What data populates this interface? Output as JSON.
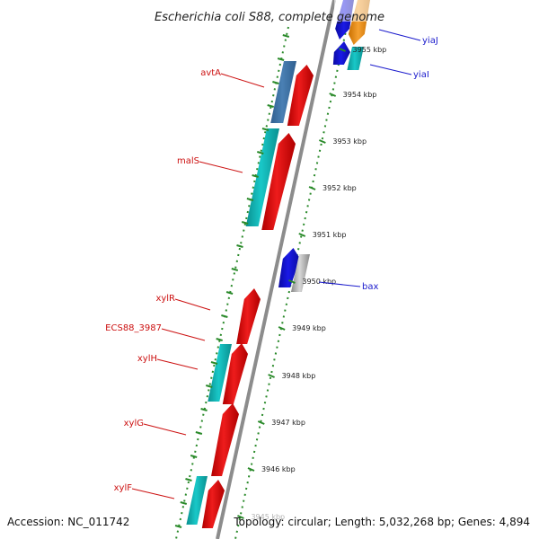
{
  "title": "Escherichia coli S88, complete genome",
  "footer": {
    "accession": "Accession: NC_011742",
    "summary": "Topology: circular; Length: 5,032,268 bp; Genes: 4,894"
  },
  "colors": {
    "backbone": "#8c8c8c",
    "tick": "#2a8a2a",
    "red": "#ee1c1c",
    "cyan": "#19c8c8",
    "steelblue": "#4a80b4",
    "blue": "#1a1ae6",
    "grey": "#b8b8b8",
    "orange": "#f5a030",
    "label_left": "#cc1111",
    "label_right": "#1a1acc"
  },
  "kbp_labels": [
    "3955 kbp",
    "3954 kbp",
    "3953 kbp",
    "3952 kbp",
    "3951 kbp",
    "3950 kbp",
    "3949 kbp",
    "3948 kbp",
    "3947 kbp",
    "3946 kbp",
    "3945 kbp"
  ],
  "genes_left": [
    {
      "label": "avtA"
    },
    {
      "label": "malS"
    },
    {
      "label": "xylR"
    },
    {
      "label": "ECS88_3987"
    },
    {
      "label": "xylH"
    },
    {
      "label": "xylG"
    },
    {
      "label": "xylF"
    }
  ],
  "genes_right": [
    {
      "label": "yiaJ"
    },
    {
      "label": "yiaI"
    },
    {
      "label": "bax"
    }
  ]
}
